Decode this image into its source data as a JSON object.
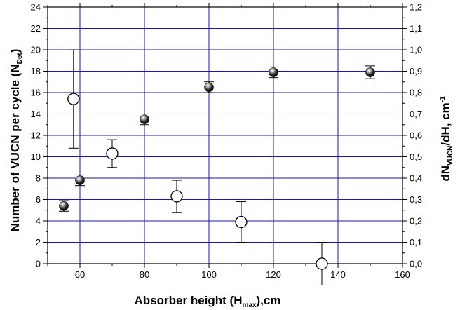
{
  "chart_data": {
    "type": "scatter",
    "xlabel": "Absorber height (H",
    "xlabel_sub": "max",
    "xlabel_after": "),cm",
    "ylabel": "Number of VUCN per cycle (N",
    "ylabel_sub": "Det",
    "ylabel_after": ")",
    "y2label": "dN",
    "y2label_sub": "VUCN",
    "y2label_after": "/dH, cm",
    "y2label_sup": "-1",
    "xlim": [
      50,
      160
    ],
    "ylim": [
      0,
      24
    ],
    "y2lim": [
      0.0,
      1.2
    ],
    "x_ticks": [
      "60",
      "80",
      "100",
      "120",
      "140",
      "160"
    ],
    "y_ticks": [
      "0",
      "2",
      "4",
      "6",
      "8",
      "10",
      "12",
      "14",
      "16",
      "18",
      "20",
      "22",
      "24"
    ],
    "y2_ticks": [
      "0,0",
      "0,1",
      "0,2",
      "0,3",
      "0,4",
      "0,5",
      "0,6",
      "0,7",
      "0,8",
      "0,9",
      "1,0",
      "1,1",
      "1,2"
    ],
    "grid": true,
    "grid_color": "#1a1aa6",
    "series": [
      {
        "marker": "filled-sphere",
        "axis": "left",
        "points": [
          {
            "x": 55,
            "y": 5.4,
            "err": 0.5
          },
          {
            "x": 60,
            "y": 7.8,
            "err": 0.5
          },
          {
            "x": 80,
            "y": 13.5,
            "err": 0.5
          },
          {
            "x": 100,
            "y": 16.5,
            "err": 0.5
          },
          {
            "x": 120,
            "y": 17.9,
            "err": 0.5
          },
          {
            "x": 150,
            "y": 17.9,
            "err": 0.6
          }
        ]
      },
      {
        "marker": "open-circle",
        "axis": "right",
        "points": [
          {
            "x": 58,
            "y": 0.77,
            "err": 0.23
          },
          {
            "x": 70,
            "y": 0.515,
            "err": 0.065
          },
          {
            "x": 90,
            "y": 0.315,
            "err": 0.075
          },
          {
            "x": 110,
            "y": 0.195,
            "err": 0.095
          },
          {
            "x": 135,
            "y": 0.0,
            "err": 0.1
          }
        ]
      }
    ]
  }
}
